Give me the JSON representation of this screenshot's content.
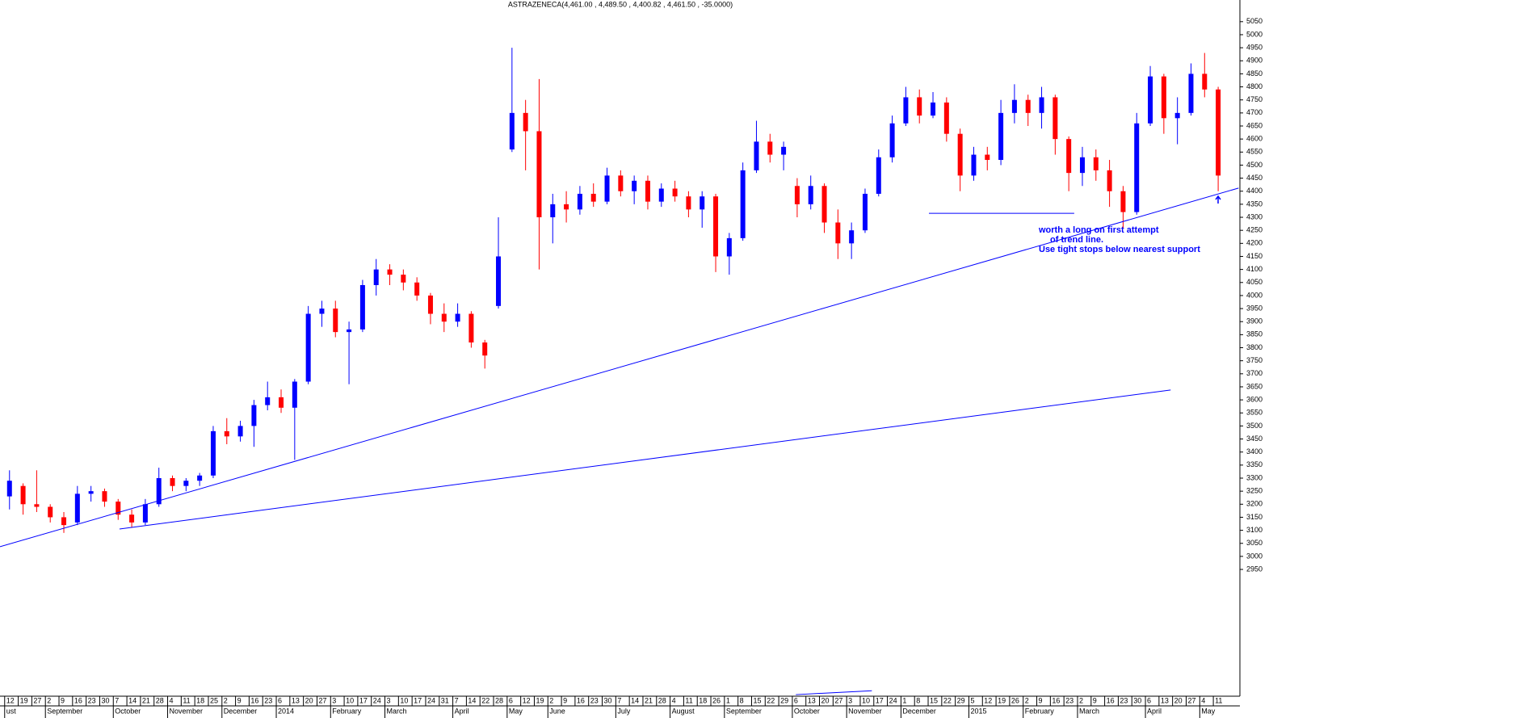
{
  "chart_data": {
    "type": "candlestick",
    "title": "ASTRAZENECA(4,461.00 , 4,489.50 , 4,400.82 , 4,461.50 , -35.0000)",
    "up_color": "#0000ff",
    "down_color": "#ff0000",
    "line_color": "#0000ff",
    "xlim": [
      -0.7,
      90.6
    ],
    "ylim": [
      2464,
      5133
    ],
    "yticks": [
      2950,
      3000,
      3050,
      3100,
      3150,
      3200,
      3250,
      3300,
      3350,
      3400,
      3450,
      3500,
      3550,
      3600,
      3650,
      3700,
      3750,
      3800,
      3850,
      3900,
      3950,
      4000,
      4050,
      4100,
      4150,
      4200,
      4250,
      4300,
      4350,
      4400,
      4450,
      4500,
      4550,
      4600,
      4650,
      4700,
      4750,
      4800,
      4850,
      4900,
      4950,
      5000,
      5050
    ],
    "day_labels": [
      "12",
      "19",
      "27",
      "2",
      "9",
      "16",
      "23",
      "30",
      "7",
      "14",
      "21",
      "28",
      "4",
      "11",
      "18",
      "25",
      "2",
      "9",
      "16",
      "23",
      "6",
      "13",
      "20",
      "27",
      "3",
      "10",
      "17",
      "24",
      "3",
      "10",
      "17",
      "24",
      "31",
      "7",
      "14",
      "22",
      "28",
      "6",
      "12",
      "19",
      "2",
      "9",
      "16",
      "23",
      "30",
      "7",
      "14",
      "21",
      "28",
      "4",
      "11",
      "18",
      "26",
      "1",
      "8",
      "15",
      "22",
      "29",
      "6",
      "13",
      "20",
      "27",
      "3",
      "10",
      "17",
      "24",
      "1",
      "8",
      "15",
      "22",
      "29",
      "5",
      "12",
      "19",
      "26",
      "2",
      "9",
      "16",
      "23",
      "2",
      "9",
      "16",
      "23",
      "30",
      "6",
      "13",
      "20",
      "27",
      "4",
      "11"
    ],
    "month_labels": [
      {
        "label": "ust",
        "index": 0
      },
      {
        "label": "September",
        "index": 3
      },
      {
        "label": "October",
        "index": 8
      },
      {
        "label": "November",
        "index": 12
      },
      {
        "label": "December",
        "index": 16
      },
      {
        "label": "2014",
        "index": 20
      },
      {
        "label": "February",
        "index": 24
      },
      {
        "label": "March",
        "index": 28
      },
      {
        "label": "April",
        "index": 33
      },
      {
        "label": "May",
        "index": 37
      },
      {
        "label": "June",
        "index": 40
      },
      {
        "label": "July",
        "index": 45
      },
      {
        "label": "August",
        "index": 49
      },
      {
        "label": "September",
        "index": 53
      },
      {
        "label": "October",
        "index": 58
      },
      {
        "label": "November",
        "index": 62
      },
      {
        "label": "December",
        "index": 66
      },
      {
        "label": "2015",
        "index": 71
      },
      {
        "label": "February",
        "index": 75
      },
      {
        "label": "March",
        "index": 79
      },
      {
        "label": "April",
        "index": 84
      },
      {
        "label": "May",
        "index": 88
      }
    ],
    "candles": [
      [
        3230,
        3330,
        3180,
        3290
      ],
      [
        3270,
        3280,
        3160,
        3200
      ],
      [
        3200,
        3330,
        3170,
        3190
      ],
      [
        3190,
        3200,
        3130,
        3150
      ],
      [
        3150,
        3170,
        3090,
        3120
      ],
      [
        3130,
        3270,
        3120,
        3240
      ],
      [
        3240,
        3270,
        3210,
        3250
      ],
      [
        3250,
        3260,
        3190,
        3210
      ],
      [
        3210,
        3220,
        3140,
        3160
      ],
      [
        3160,
        3180,
        3110,
        3130
      ],
      [
        3130,
        3220,
        3120,
        3200
      ],
      [
        3200,
        3340,
        3190,
        3300
      ],
      [
        3300,
        3310,
        3250,
        3270
      ],
      [
        3270,
        3300,
        3250,
        3290
      ],
      [
        3290,
        3320,
        3270,
        3310
      ],
      [
        3310,
        3500,
        3300,
        3480
      ],
      [
        3480,
        3530,
        3430,
        3460
      ],
      [
        3460,
        3520,
        3440,
        3500
      ],
      [
        3500,
        3600,
        3420,
        3580
      ],
      [
        3580,
        3670,
        3560,
        3610
      ],
      [
        3610,
        3640,
        3550,
        3570
      ],
      [
        3570,
        3680,
        3370,
        3670
      ],
      [
        3670,
        3960,
        3660,
        3930
      ],
      [
        3930,
        3980,
        3880,
        3950
      ],
      [
        3950,
        3980,
        3840,
        3860
      ],
      [
        3860,
        3900,
        3660,
        3870
      ],
      [
        3870,
        4060,
        3860,
        4040
      ],
      [
        4040,
        4140,
        4000,
        4100
      ],
      [
        4100,
        4120,
        4040,
        4080
      ],
      [
        4080,
        4100,
        4020,
        4050
      ],
      [
        4050,
        4070,
        3980,
        4000
      ],
      [
        4000,
        4010,
        3890,
        3930
      ],
      [
        3930,
        3970,
        3860,
        3900
      ],
      [
        3900,
        3970,
        3880,
        3930
      ],
      [
        3930,
        3940,
        3800,
        3820
      ],
      [
        3820,
        3830,
        3720,
        3770
      ],
      [
        3960,
        4300,
        3950,
        4150
      ],
      [
        4560,
        4950,
        4550,
        4700
      ],
      [
        4700,
        4750,
        4480,
        4630
      ],
      [
        4630,
        4830,
        4100,
        4300
      ],
      [
        4300,
        4390,
        4200,
        4350
      ],
      [
        4350,
        4400,
        4280,
        4330
      ],
      [
        4330,
        4420,
        4310,
        4390
      ],
      [
        4390,
        4430,
        4340,
        4360
      ],
      [
        4360,
        4490,
        4350,
        4460
      ],
      [
        4460,
        4480,
        4380,
        4400
      ],
      [
        4400,
        4460,
        4350,
        4440
      ],
      [
        4440,
        4460,
        4330,
        4360
      ],
      [
        4360,
        4430,
        4340,
        4410
      ],
      [
        4410,
        4440,
        4360,
        4380
      ],
      [
        4380,
        4400,
        4300,
        4330
      ],
      [
        4330,
        4400,
        4260,
        4380
      ],
      [
        4380,
        4390,
        4090,
        4150
      ],
      [
        4150,
        4240,
        4080,
        4220
      ],
      [
        4220,
        4510,
        4210,
        4480
      ],
      [
        4480,
        4670,
        4470,
        4590
      ],
      [
        4590,
        4620,
        4510,
        4540
      ],
      [
        4540,
        4590,
        4480,
        4570
      ],
      [
        4420,
        4450,
        4300,
        4350
      ],
      [
        4350,
        4460,
        4330,
        4420
      ],
      [
        4420,
        4430,
        4240,
        4280
      ],
      [
        4280,
        4330,
        4140,
        4200
      ],
      [
        4200,
        4280,
        4140,
        4250
      ],
      [
        4250,
        4410,
        4240,
        4390
      ],
      [
        4390,
        4560,
        4380,
        4530
      ],
      [
        4530,
        4690,
        4510,
        4660
      ],
      [
        4660,
        4800,
        4650,
        4760
      ],
      [
        4760,
        4790,
        4660,
        4690
      ],
      [
        4690,
        4780,
        4680,
        4740
      ],
      [
        4740,
        4760,
        4590,
        4620
      ],
      [
        4620,
        4640,
        4400,
        4460
      ],
      [
        4460,
        4570,
        4440,
        4540
      ],
      [
        4540,
        4570,
        4480,
        4520
      ],
      [
        4520,
        4750,
        4500,
        4700
      ],
      [
        4700,
        4810,
        4660,
        4750
      ],
      [
        4750,
        4770,
        4650,
        4700
      ],
      [
        4700,
        4800,
        4640,
        4760
      ],
      [
        4760,
        4770,
        4540,
        4600
      ],
      [
        4600,
        4610,
        4400,
        4470
      ],
      [
        4470,
        4570,
        4420,
        4530
      ],
      [
        4530,
        4560,
        4440,
        4480
      ],
      [
        4480,
        4520,
        4340,
        4400
      ],
      [
        4400,
        4420,
        4260,
        4320
      ],
      [
        4320,
        4700,
        4310,
        4660
      ],
      [
        4660,
        4880,
        4650,
        4840
      ],
      [
        4840,
        4850,
        4620,
        4680
      ],
      [
        4680,
        4760,
        4580,
        4700
      ],
      [
        4700,
        4890,
        4690,
        4850
      ],
      [
        4850,
        4930,
        4760,
        4790
      ],
      [
        4790,
        4800,
        4400,
        4460
      ]
    ],
    "trend_lines": [
      {
        "x": [
          -0.7,
          90.5
        ],
        "y": [
          3037,
          4412
        ]
      },
      {
        "x": [
          8.1,
          85.5
        ],
        "y": [
          3105,
          3638
        ]
      },
      {
        "x": [
          67.7,
          78.4
        ],
        "y": [
          4315,
          4315
        ]
      },
      {
        "x": [
          57.9,
          63.5
        ],
        "y": [
          2470,
          2485
        ]
      }
    ],
    "annotation": [
      "worth a long on first attempt",
      "of trend line.",
      "Use tight stops below nearest support"
    ]
  }
}
